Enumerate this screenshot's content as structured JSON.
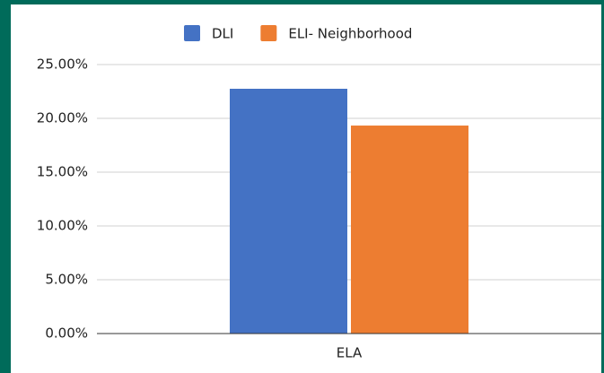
{
  "chart_data": {
    "type": "bar",
    "categories": [
      "ELA"
    ],
    "series": [
      {
        "name": "DLI",
        "color": "#4472c4",
        "values": [
          22.75
        ]
      },
      {
        "name": "ELI- Neighborhood",
        "color": "#ed7d31",
        "values": [
          19.33
        ]
      }
    ],
    "ylim": [
      0,
      25
    ],
    "yticks": [
      {
        "value": 0,
        "label": "0.00%"
      },
      {
        "value": 5,
        "label": "5.00%"
      },
      {
        "value": 10,
        "label": "10.00%"
      },
      {
        "value": 15,
        "label": "15.00%"
      },
      {
        "value": 20,
        "label": "20.00%"
      },
      {
        "value": 25,
        "label": "25.00%"
      }
    ],
    "grid": true,
    "legend": "top"
  }
}
